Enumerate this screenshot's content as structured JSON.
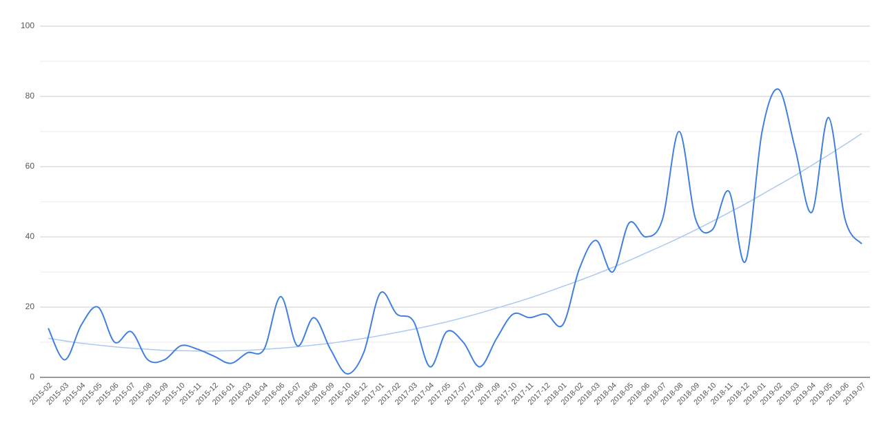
{
  "chart_data": {
    "type": "line",
    "categories": [
      "2015-02",
      "2015-03",
      "2015-04",
      "2015-05",
      "2015-06",
      "2015-07",
      "2015-08",
      "2015-09",
      "2015-10",
      "2015-11",
      "2015-12",
      "2016-01",
      "2016-03",
      "2016-04",
      "2016-06",
      "2016-07",
      "2016-08",
      "2016-09",
      "2016-10",
      "2016-12",
      "2017-01",
      "2017-02",
      "2017-03",
      "2017-04",
      "2017-05",
      "2017-07",
      "2017-08",
      "2017-09",
      "2017-10",
      "2017-11",
      "2017-12",
      "2018-01",
      "2018-02",
      "2018-03",
      "2018-04",
      "2018-05",
      "2018-06",
      "2018-07",
      "2018-08",
      "2018-09",
      "2018-10",
      "2018-11",
      "2018-12",
      "2019-01",
      "2019-02",
      "2019-03",
      "2019-04",
      "2019-05",
      "2019-06",
      "2019-07"
    ],
    "values": [
      14,
      5,
      15,
      20,
      10,
      13,
      5,
      5,
      9,
      8,
      6,
      4,
      7,
      8,
      23,
      9,
      17,
      8,
      1,
      7,
      24,
      18,
      16,
      3,
      13,
      10,
      3,
      11,
      18,
      17,
      18,
      15,
      31,
      39,
      30,
      44,
      40,
      45,
      70,
      45,
      42,
      53,
      33,
      70,
      82,
      65,
      47,
      74,
      45,
      38
    ],
    "color": "#3f7fe0",
    "trendline": {
      "color": "#a9c9f3",
      "values": [
        11.1,
        10.4,
        9.7,
        9.2,
        8.7,
        8.3,
        8.0,
        7.7,
        7.6,
        7.5,
        7.5,
        7.6,
        7.7,
        8.0,
        8.3,
        8.7,
        9.2,
        9.7,
        10.4,
        11.1,
        11.9,
        12.8,
        13.7,
        14.7,
        15.8,
        17.0,
        18.3,
        19.7,
        21.1,
        22.6,
        24.2,
        25.9,
        27.6,
        29.4,
        31.3,
        33.3,
        35.4,
        37.5,
        39.7,
        42.0,
        44.4,
        46.9,
        49.4,
        52.1,
        54.8,
        57.5,
        60.4,
        63.3,
        66.3,
        69.4
      ]
    },
    "ylim": [
      0,
      100
    ],
    "yticks": [
      0,
      20,
      40,
      60,
      80,
      100
    ],
    "minor_yticks": [
      10,
      30,
      50,
      70,
      90
    ],
    "grid": true
  }
}
